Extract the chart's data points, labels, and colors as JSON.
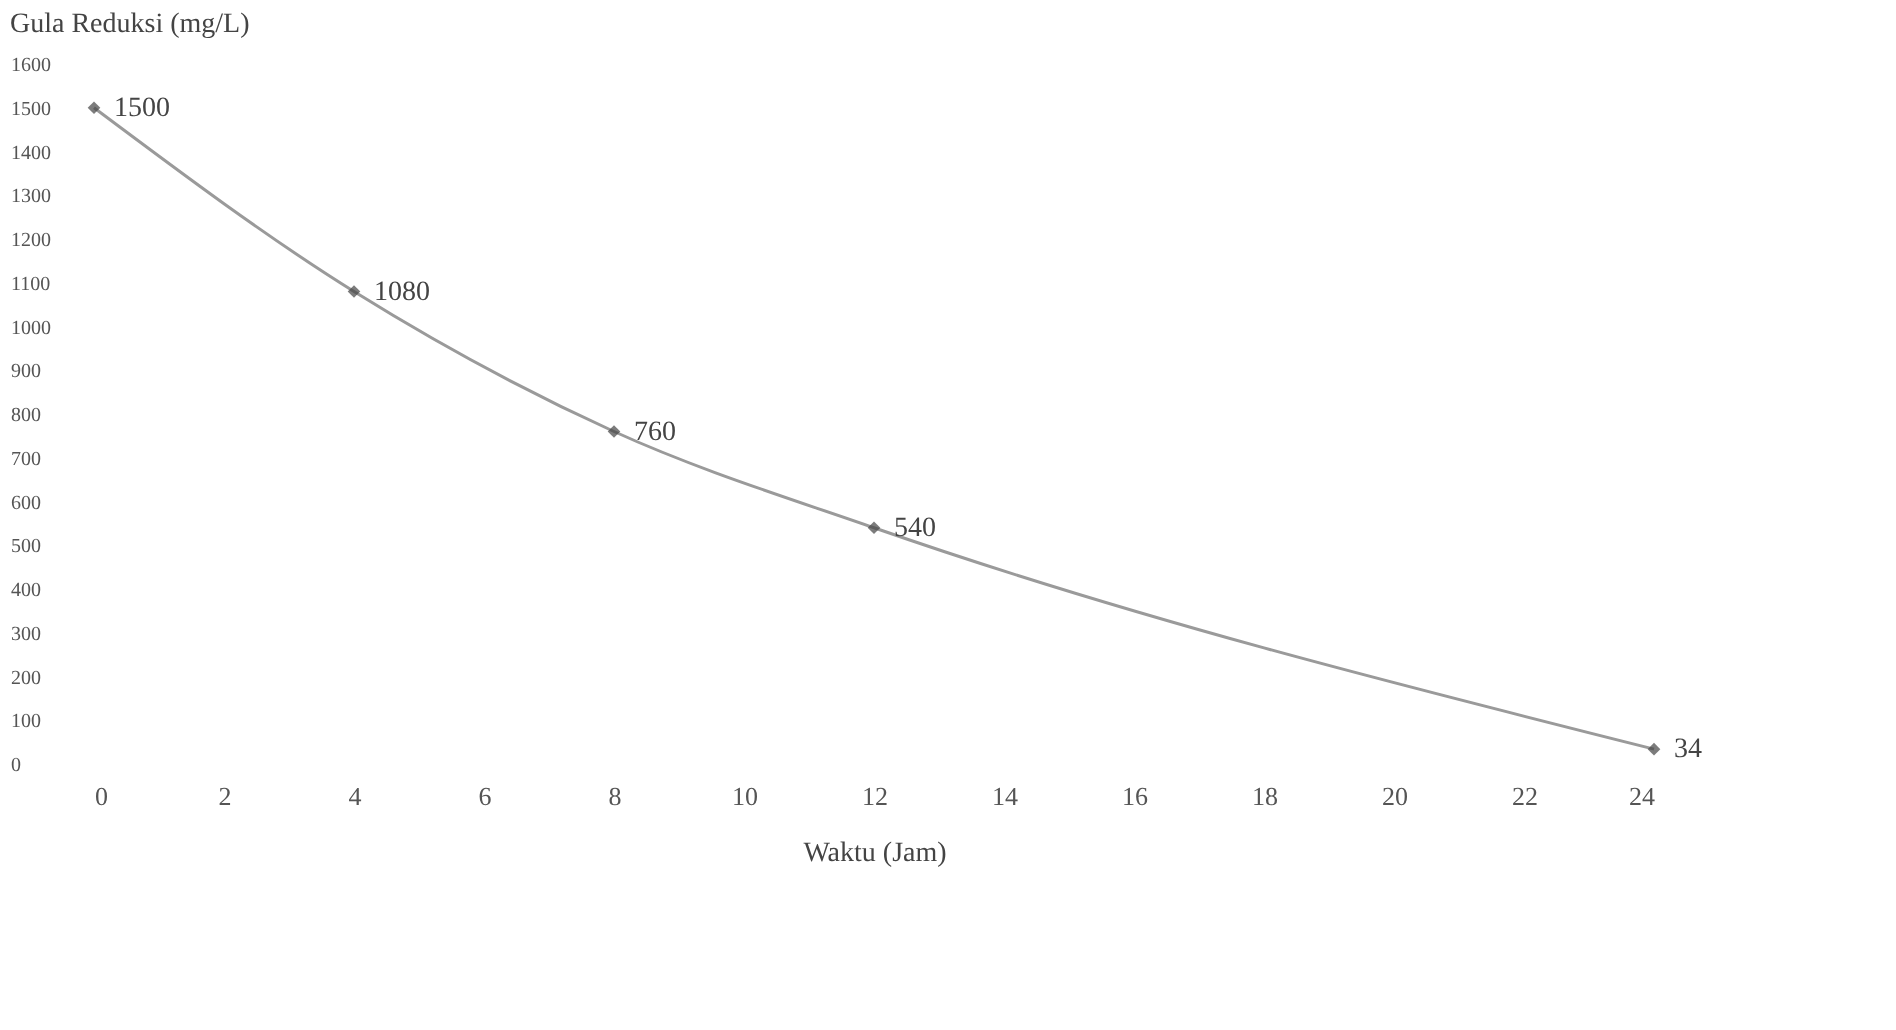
{
  "chart_data": {
    "type": "line",
    "ylabel": "Gula Reduksi (mg/L)",
    "xlabel": "Waktu (Jam)",
    "x": [
      0,
      4,
      8,
      12,
      24
    ],
    "series": [
      {
        "color": "#9a9a9a",
        "values": [
          1500,
          1080,
          760,
          540,
          34
        ]
      }
    ],
    "xlim": [
      0,
      24
    ],
    "xticks": [
      0,
      2,
      4,
      6,
      8,
      10,
      12,
      14,
      16,
      18,
      20,
      22,
      24
    ],
    "ylim": [
      0,
      1600
    ],
    "yticks": [
      0,
      100,
      200,
      300,
      400,
      500,
      600,
      700,
      800,
      900,
      1000,
      1100,
      1200,
      1300,
      1400,
      1500,
      1600
    ],
    "marker": "diamond",
    "data_labels": true,
    "grid": false,
    "legend": false
  }
}
